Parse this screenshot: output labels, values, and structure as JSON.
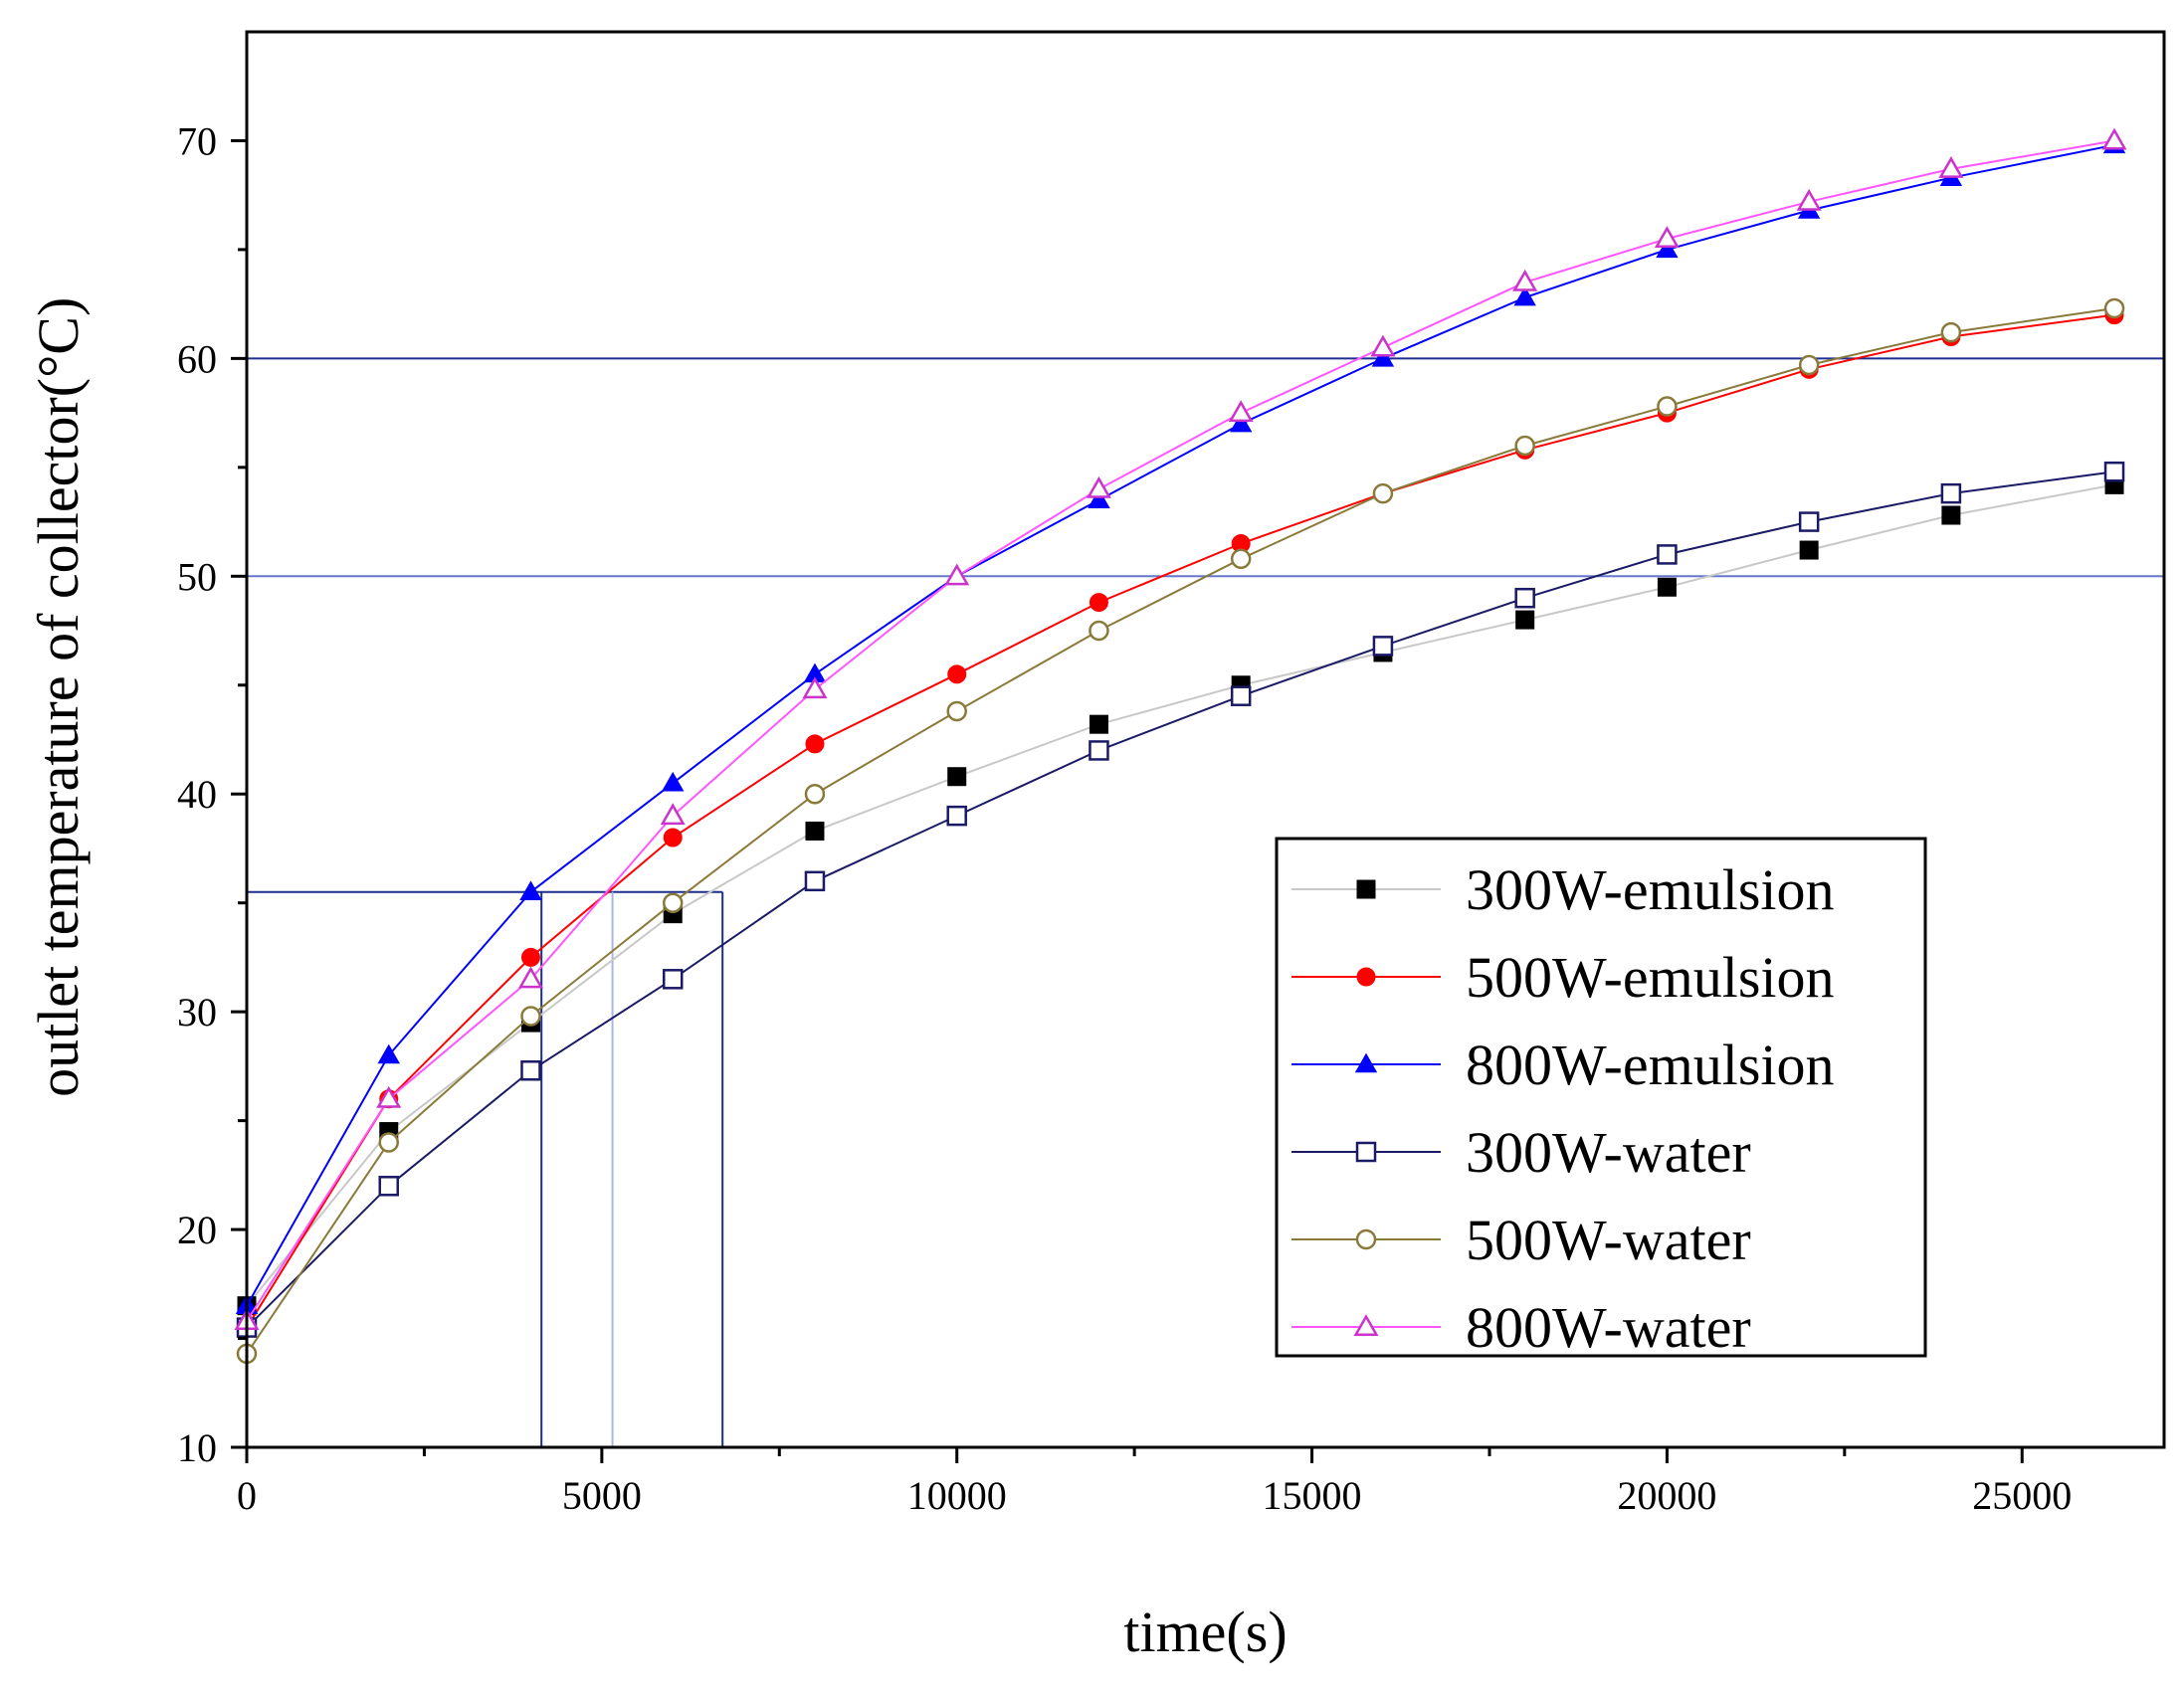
{
  "chart_data": {
    "type": "scatter",
    "xlabel": "time(s)",
    "ylabel": "outlet temperature of collector(°C)",
    "xlim": [
      0,
      27000
    ],
    "ylim": [
      10,
      75
    ],
    "x_ticks": [
      0,
      5000,
      10000,
      15000,
      20000,
      25000
    ],
    "x_tick_labels": [
      "0",
      "5000",
      "10000",
      "15000",
      "20000",
      "25000"
    ],
    "y_ticks": [
      10,
      20,
      30,
      40,
      50,
      60,
      70
    ],
    "y_tick_labels": [
      "10",
      "20",
      "30",
      "40",
      "50",
      "60",
      "70"
    ],
    "grid": false,
    "legend_position": "lower-right",
    "reference_lines": {
      "horizontal": [
        {
          "y": 60,
          "color": "#1f2f8f"
        },
        {
          "y": 50,
          "color": "#6677cc"
        },
        {
          "y": 35.5,
          "color": "#1f2f8f"
        }
      ],
      "vertical": [
        {
          "x": 4150,
          "color": "#1f2f8f"
        },
        {
          "x": 5150,
          "color": "#aab4e6"
        },
        {
          "x": 6700,
          "color": "#1f2f8f"
        }
      ]
    },
    "series": [
      {
        "name": "300W-emulsion",
        "marker": "square-filled",
        "color": "#000000",
        "line_color": "#c8c8c8",
        "x": [
          0,
          2000,
          4000,
          6000,
          8000,
          10000,
          12000,
          14000,
          16000,
          18000,
          20000,
          22000,
          24000,
          26300
        ],
        "y": [
          16.5,
          24.5,
          29.5,
          34.5,
          38.3,
          40.8,
          43.2,
          45.0,
          46.5,
          48.0,
          49.5,
          51.2,
          52.8,
          54.2
        ]
      },
      {
        "name": "500W-emulsion",
        "marker": "circle-filled",
        "color": "#ff0000",
        "line_color": "#ff0000",
        "x": [
          0,
          2000,
          4000,
          6000,
          8000,
          10000,
          12000,
          14000,
          16000,
          18000,
          20000,
          22000,
          24000,
          26300
        ],
        "y": [
          15.5,
          26.0,
          32.5,
          38.0,
          42.3,
          45.5,
          48.8,
          51.5,
          53.8,
          55.8,
          57.5,
          59.5,
          61.0,
          62.0
        ]
      },
      {
        "name": "800W-emulsion",
        "marker": "triangle-filled",
        "color": "#0000ff",
        "line_color": "#0000ff",
        "x": [
          0,
          2000,
          4000,
          6000,
          8000,
          10000,
          12000,
          14000,
          16000,
          18000,
          20000,
          22000,
          24000,
          26300
        ],
        "y": [
          16.5,
          28.0,
          35.5,
          40.5,
          45.5,
          50.0,
          53.5,
          57.0,
          60.0,
          62.8,
          65.0,
          66.8,
          68.3,
          69.8
        ]
      },
      {
        "name": "300W-water",
        "marker": "square-open",
        "color": "#1a1a66",
        "line_color": "#1a1a66",
        "x": [
          0,
          2000,
          4000,
          6000,
          8000,
          10000,
          12000,
          14000,
          16000,
          18000,
          20000,
          22000,
          24000,
          26300
        ],
        "y": [
          15.5,
          22.0,
          27.3,
          31.5,
          36.0,
          39.0,
          42.0,
          44.5,
          46.8,
          49.0,
          51.0,
          52.5,
          53.8,
          54.8
        ]
      },
      {
        "name": "500W-water",
        "marker": "circle-open",
        "color": "#8a7a3a",
        "line_color": "#8a7a3a",
        "x": [
          0,
          2000,
          4000,
          6000,
          8000,
          10000,
          12000,
          14000,
          16000,
          18000,
          20000,
          22000,
          24000,
          26300
        ],
        "y": [
          14.3,
          24.0,
          29.8,
          35.0,
          40.0,
          43.8,
          47.5,
          50.8,
          53.8,
          56.0,
          57.8,
          59.7,
          61.2,
          62.3
        ]
      },
      {
        "name": "800W-water",
        "marker": "triangle-open",
        "color": "#cc33cc",
        "line_color": "#ff55ff",
        "x": [
          0,
          2000,
          4000,
          6000,
          8000,
          10000,
          12000,
          14000,
          16000,
          18000,
          20000,
          22000,
          24000,
          26300
        ],
        "y": [
          15.8,
          26.0,
          31.5,
          39.0,
          44.8,
          50.0,
          54.0,
          57.5,
          60.5,
          63.5,
          65.5,
          67.2,
          68.7,
          70.0
        ]
      }
    ]
  }
}
